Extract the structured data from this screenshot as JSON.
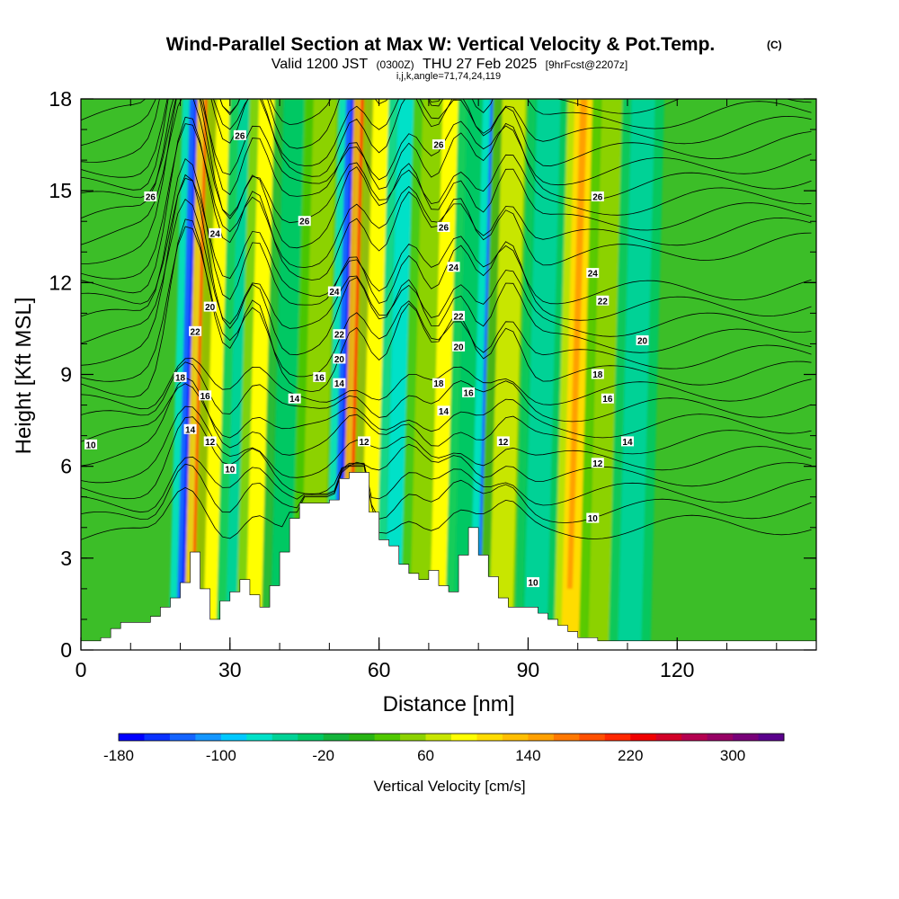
{
  "chart_data": {
    "type": "heatmap",
    "title": "Wind-Parallel Section at Max W: Vertical Velocity & Pot.Temp.",
    "title_badge": "(C)",
    "subtitle_parts": [
      "Valid 1200 JST",
      "(0300Z)",
      "THU 27 Feb 2025",
      "[9hrFcst@2207z]"
    ],
    "subsubtitle": "i,j,k,angle=71,74,24,119",
    "xlabel": "Distance [nm]",
    "ylabel": "Height [Kft MSL]",
    "xlim": [
      0,
      148
    ],
    "ylim": [
      0,
      18
    ],
    "x_ticks": [
      0,
      30,
      60,
      90,
      120
    ],
    "y_ticks": [
      0,
      3,
      6,
      9,
      12,
      15,
      18
    ],
    "colorbar": {
      "label": "Vertical Velocity [cm/s]",
      "min": -180,
      "max": 340,
      "step": 20,
      "tick_values": [
        -180,
        -100,
        -20,
        60,
        140,
        220,
        300
      ],
      "tick_labels": [
        "-180",
        "-100",
        "-20",
        "60",
        "140",
        "220",
        "300"
      ],
      "colors": [
        "#0000ff",
        "#0a32ff",
        "#1464ff",
        "#1496ff",
        "#00c8ff",
        "#00e1c8",
        "#00d296",
        "#00c864",
        "#14b43c",
        "#28b414",
        "#50c800",
        "#8cd200",
        "#c8e600",
        "#ffff00",
        "#ffdc00",
        "#ffbe00",
        "#ffa000",
        "#ff7800",
        "#ff5000",
        "#ff2800",
        "#f00000",
        "#d20028",
        "#b40050",
        "#960064",
        "#780078",
        "#5a008c"
      ]
    },
    "vertical_velocity_features": [
      {
        "x": 22.5,
        "w_cm_s": -170
      },
      {
        "x": 25.5,
        "w_cm_s": 250
      },
      {
        "x": 28.5,
        "w_cm_s": 120
      },
      {
        "x": 33,
        "w_cm_s": -80
      },
      {
        "x": 37,
        "w_cm_s": 110
      },
      {
        "x": 42,
        "w_cm_s": -30
      },
      {
        "x": 48,
        "w_cm_s": 60
      },
      {
        "x": 54,
        "w_cm_s": -170
      },
      {
        "x": 57,
        "w_cm_s": 270
      },
      {
        "x": 60,
        "w_cm_s": 120
      },
      {
        "x": 65,
        "w_cm_s": -90
      },
      {
        "x": 70,
        "w_cm_s": 70
      },
      {
        "x": 74,
        "w_cm_s": 110
      },
      {
        "x": 79,
        "w_cm_s": -50
      },
      {
        "x": 83,
        "w_cm_s": -170
      },
      {
        "x": 86,
        "w_cm_s": 80
      },
      {
        "x": 93,
        "w_cm_s": -60
      },
      {
        "x": 100,
        "w_cm_s": 150
      },
      {
        "x": 106,
        "w_cm_s": 70
      },
      {
        "x": 112,
        "w_cm_s": -60
      }
    ],
    "terrain_top_kft": [
      [
        0,
        0.3
      ],
      [
        4,
        0.4
      ],
      [
        6,
        0.7
      ],
      [
        8,
        0.9
      ],
      [
        14,
        1.1
      ],
      [
        16,
        1.4
      ],
      [
        18,
        1.7
      ],
      [
        20,
        2.2
      ],
      [
        22,
        3.2
      ],
      [
        24,
        2.0
      ],
      [
        26,
        1.0
      ],
      [
        28,
        1.6
      ],
      [
        30,
        1.9
      ],
      [
        32,
        2.3
      ],
      [
        34,
        1.8
      ],
      [
        36,
        1.4
      ],
      [
        38,
        2.1
      ],
      [
        40,
        3.2
      ],
      [
        42,
        4.3
      ],
      [
        44,
        4.8
      ],
      [
        46,
        4.8
      ],
      [
        50,
        4.9
      ],
      [
        52,
        5.6
      ],
      [
        54,
        5.8
      ],
      [
        57,
        5.8
      ],
      [
        58,
        4.5
      ],
      [
        60,
        3.6
      ],
      [
        62,
        3.4
      ],
      [
        64,
        2.8
      ],
      [
        66,
        2.5
      ],
      [
        68,
        2.3
      ],
      [
        70,
        2.6
      ],
      [
        72,
        2.1
      ],
      [
        74,
        1.9
      ],
      [
        76,
        3.1
      ],
      [
        78,
        4.0
      ],
      [
        80,
        3.1
      ],
      [
        82,
        2.4
      ],
      [
        84,
        1.7
      ],
      [
        86,
        1.4
      ],
      [
        92,
        1.2
      ],
      [
        94,
        1.0
      ],
      [
        96,
        0.8
      ],
      [
        98,
        0.6
      ],
      [
        100,
        0.4
      ],
      [
        104,
        0.3
      ],
      [
        148,
        0.3
      ]
    ],
    "theta_contour_labels": [
      {
        "value": "10",
        "x": 2,
        "y": 6.7
      },
      {
        "value": "10",
        "x": 30,
        "y": 5.9
      },
      {
        "value": "10",
        "x": 103,
        "y": 4.3
      },
      {
        "value": "10",
        "x": 91,
        "y": 2.2
      },
      {
        "value": "12",
        "x": 26,
        "y": 6.8
      },
      {
        "value": "12",
        "x": 57,
        "y": 6.8
      },
      {
        "value": "12",
        "x": 85,
        "y": 6.8
      },
      {
        "value": "12",
        "x": 104,
        "y": 6.1
      },
      {
        "value": "14",
        "x": 22,
        "y": 7.2
      },
      {
        "value": "14",
        "x": 43,
        "y": 8.2
      },
      {
        "value": "14",
        "x": 52,
        "y": 8.7
      },
      {
        "value": "14",
        "x": 73,
        "y": 7.8
      },
      {
        "value": "14",
        "x": 110,
        "y": 6.8
      },
      {
        "value": "16",
        "x": 25,
        "y": 8.3
      },
      {
        "value": "16",
        "x": 48,
        "y": 8.9
      },
      {
        "value": "16",
        "x": 78,
        "y": 8.4
      },
      {
        "value": "16",
        "x": 106,
        "y": 8.2
      },
      {
        "value": "18",
        "x": 20,
        "y": 8.9
      },
      {
        "value": "18",
        "x": 72,
        "y": 8.7
      },
      {
        "value": "18",
        "x": 104,
        "y": 9.0
      },
      {
        "value": "20",
        "x": 26,
        "y": 11.2
      },
      {
        "value": "20",
        "x": 52,
        "y": 9.5
      },
      {
        "value": "20",
        "x": 76,
        "y": 9.9
      },
      {
        "value": "20",
        "x": 113,
        "y": 10.1
      },
      {
        "value": "22",
        "x": 23,
        "y": 10.4
      },
      {
        "value": "22",
        "x": 52,
        "y": 10.3
      },
      {
        "value": "22",
        "x": 76,
        "y": 10.9
      },
      {
        "value": "22",
        "x": 105,
        "y": 11.4
      },
      {
        "value": "24",
        "x": 27,
        "y": 13.6
      },
      {
        "value": "24",
        "x": 51,
        "y": 11.7
      },
      {
        "value": "24",
        "x": 75,
        "y": 12.5
      },
      {
        "value": "24",
        "x": 103,
        "y": 12.3
      },
      {
        "value": "26",
        "x": 14,
        "y": 14.8
      },
      {
        "value": "26",
        "x": 32,
        "y": 16.8
      },
      {
        "value": "26",
        "x": 45,
        "y": 14.0
      },
      {
        "value": "26",
        "x": 72,
        "y": 16.5
      },
      {
        "value": "26",
        "x": 73,
        "y": 13.8
      },
      {
        "value": "26",
        "x": 104,
        "y": 14.8
      }
    ]
  }
}
